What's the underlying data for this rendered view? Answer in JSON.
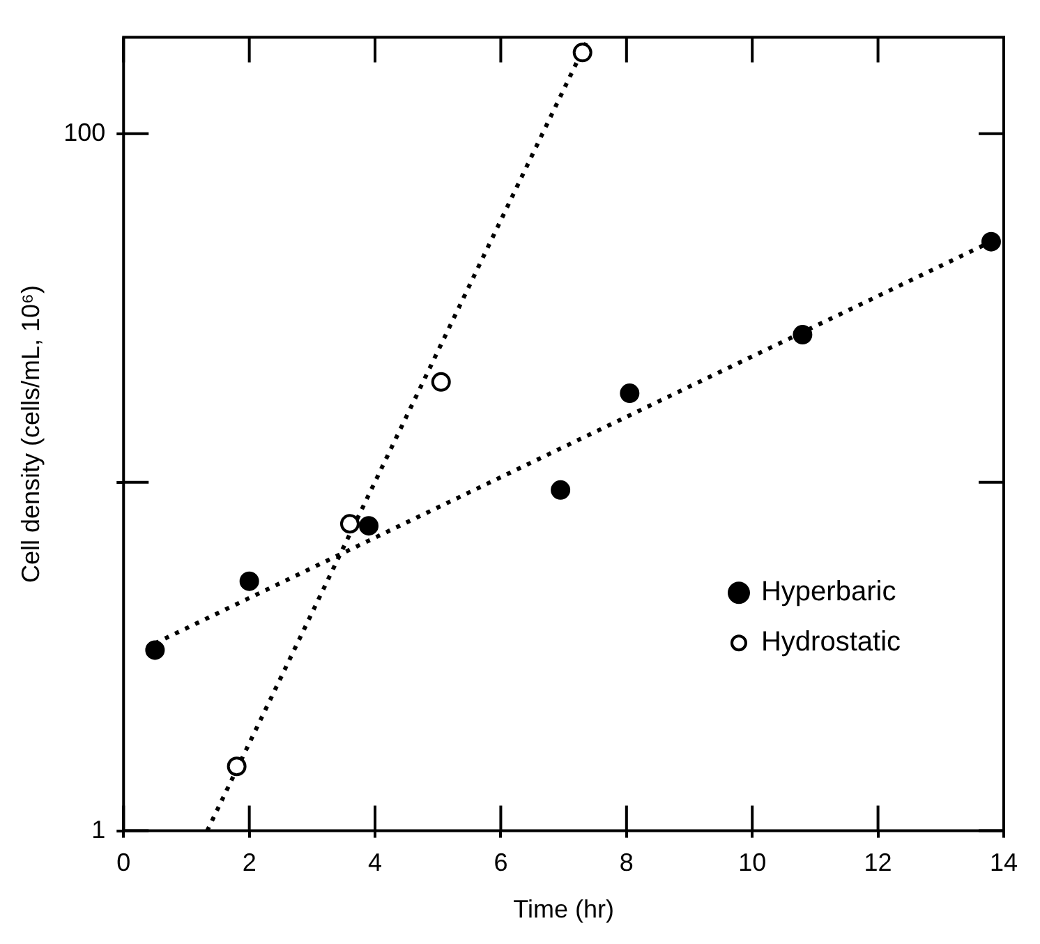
{
  "chart_data": {
    "type": "scatter",
    "xlabel": "Time (hr)",
    "ylabel": "Cell density (cells/mL, 10⁶)",
    "xlim": [
      0,
      14
    ],
    "xticks": [
      0,
      2,
      4,
      6,
      8,
      10,
      12,
      14
    ],
    "ylim": [
      1,
      189
    ],
    "yticks": [
      1,
      {
        "value": 10,
        "label": null
      },
      100
    ],
    "log": "y",
    "grid": false,
    "legend": "right",
    "marker": "circle",
    "series": [
      {
        "name": "Hyperbaric",
        "color": "#000000",
        "x": [
          0.5,
          2,
          3.9,
          6.95,
          8.05,
          10.8,
          13.8
        ],
        "values": [
          3.3,
          5.2,
          7.5,
          9.5,
          18,
          26.5,
          49
        ]
      },
      {
        "name": "Hydrostatic",
        "color": "#000000",
        "marker": "open circle",
        "x": [
          1.8,
          3.6,
          5.05,
          7.3
        ],
        "values": [
          1.53,
          7.6,
          19.4,
          171
        ]
      },
      {
        "type": "line",
        "color": "#000000",
        "marker": "none",
        "line_style": "dotted",
        "x": [
          0.5,
          13.9
        ],
        "values": [
          3.45,
          50
        ]
      },
      {
        "type": "line",
        "color": "#000000",
        "marker": "none",
        "line_style": "dotted",
        "x": [
          1.33,
          7.4
        ],
        "values": [
          1,
          189
        ]
      }
    ]
  }
}
